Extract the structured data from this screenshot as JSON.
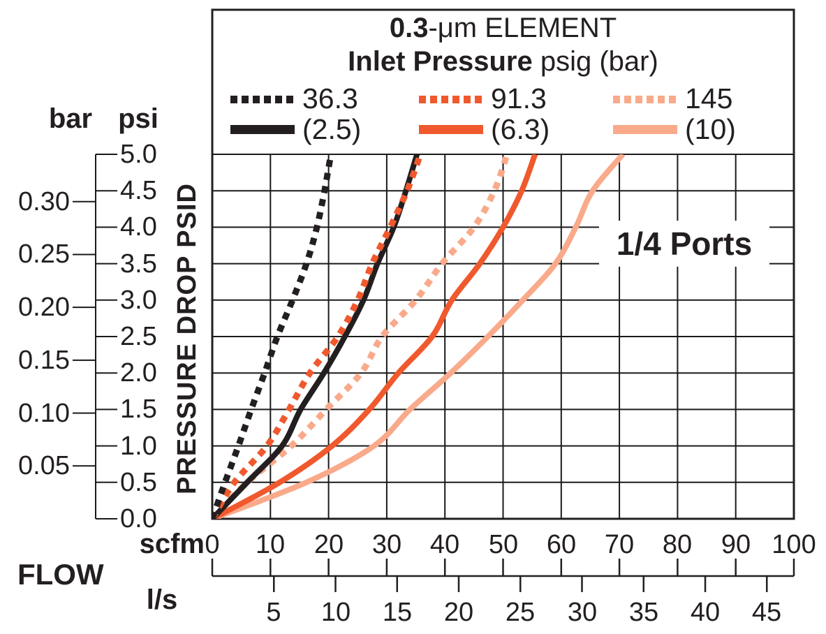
{
  "chart_data": {
    "type": "line",
    "title": {
      "bold": "0.3",
      "rest": "-μm ELEMENT"
    },
    "subtitle": {
      "bold": "Inlet Pressure",
      "rest": " psig (bar)"
    },
    "annotation": "1/4 Ports",
    "legend": {
      "position": "top-inside",
      "entries": [
        {
          "psig_label": "36.3",
          "bar_label": "(2.5)",
          "color": "#231F20"
        },
        {
          "psig_label": "91.3",
          "bar_label": "(6.3)",
          "color": "#F0592D"
        },
        {
          "psig_label": "145",
          "bar_label": "(10)",
          "color": "#F9AA8B"
        }
      ],
      "note": "dotted swatch beside psig value, solid swatch beside bar value"
    },
    "y_axis": {
      "label": "PRESSURE DROP PSID",
      "psi_header": "psi",
      "bar_header": "bar",
      "psi_ticks": [
        "5.0",
        "4.5",
        "4.0",
        "3.5",
        "3.0",
        "2.5",
        "2.0",
        "1.5",
        "1.0",
        "0.5",
        "0.0"
      ],
      "bar_ticks": [
        "0.30",
        "0.25",
        "0.20",
        "0.15",
        "0.10",
        "0.05"
      ],
      "bar_tick_values": [
        0.3,
        0.25,
        0.2,
        0.15,
        0.1,
        0.05
      ],
      "psi_range": [
        0,
        5
      ],
      "psi_per_bar": 14.5038,
      "grid": true
    },
    "x_axis": {
      "label": "FLOW",
      "scfm_header": "scfm",
      "ls_header": "l/s",
      "scfm_ticks": [
        0,
        10,
        20,
        30,
        40,
        50,
        60,
        70,
        80,
        90,
        100
      ],
      "ls_ticks": [
        5,
        10,
        15,
        20,
        25,
        30,
        35,
        40,
        45
      ],
      "scfm_range": [
        0,
        100
      ],
      "scfm_per_ls": 2.1189,
      "grid": true
    },
    "psi_points": [
      0,
      0.5,
      1.0,
      1.5,
      2.0,
      2.5,
      3.0,
      3.5,
      4.0,
      4.5,
      5.0
    ],
    "series": [
      {
        "id": "p36-dotted",
        "name": "36.3 psig — dotted",
        "style": "dotted",
        "color": "#231F20",
        "scfm_at_psi": [
          0,
          2.2,
          4.5,
          6.7,
          9.0,
          11.2,
          13.8,
          16.2,
          18.0,
          19.3,
          20.4
        ]
      },
      {
        "id": "p36-solid",
        "name": "2.5 bar — solid",
        "style": "solid",
        "color": "#231F20",
        "scfm_at_psi": [
          0,
          6.0,
          12.0,
          15.2,
          19.2,
          22.8,
          26.0,
          28.4,
          31.2,
          33.3,
          35.2
        ]
      },
      {
        "id": "p91-dotted",
        "name": "91.3 psig — dotted",
        "style": "dotted",
        "color": "#F0592D",
        "scfm_at_psi": [
          0,
          3.8,
          9.4,
          13.2,
          16.8,
          21.6,
          25.0,
          27.5,
          30.6,
          33.5,
          35.8
        ]
      },
      {
        "id": "p91-solid",
        "name": "6.3 bar — solid",
        "style": "solid",
        "color": "#F0592D",
        "scfm_at_psi": [
          0,
          11.6,
          20.6,
          27.0,
          32.0,
          37.8,
          41.2,
          46.0,
          50.0,
          53.2,
          55.5
        ]
      },
      {
        "id": "p145-dotted",
        "name": "145 psig — dotted",
        "style": "dotted",
        "color": "#F9AA8B",
        "scfm_at_psi": [
          0,
          6.0,
          13.6,
          19.6,
          25.6,
          29.2,
          35.0,
          39.5,
          45.0,
          48.5,
          50.7
        ]
      },
      {
        "id": "p145-solid",
        "name": "10 bar — solid",
        "style": "solid",
        "color": "#F9AA8B",
        "scfm_at_psi": [
          0,
          16.2,
          27.8,
          34.0,
          41.0,
          47.4,
          53.4,
          59.0,
          62.5,
          65.4,
          70.6
        ]
      }
    ],
    "colors": {
      "grid": "#1a1a1a",
      "frame": "#231F20"
    }
  }
}
